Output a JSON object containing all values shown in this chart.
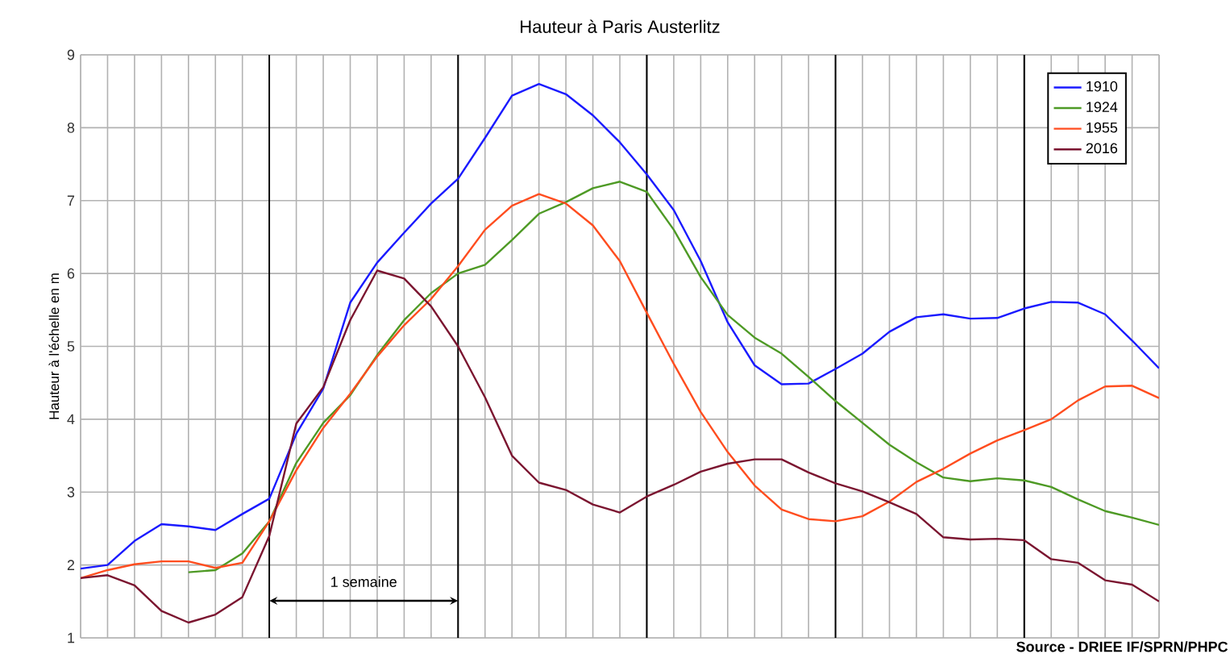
{
  "chart_data": {
    "type": "line",
    "title": "Hauteur à Paris Austerlitz",
    "ylabel": "Hauteur à l'échelle en m",
    "categories": [
      null,
      null,
      null,
      null,
      null,
      null,
      null,
      null,
      null,
      null,
      null,
      null,
      null,
      null,
      null,
      null,
      null,
      null,
      null,
      null,
      null,
      null,
      null,
      null,
      null,
      null,
      null,
      null,
      null,
      null,
      null,
      null,
      null,
      null,
      null,
      null,
      null,
      null,
      null,
      null,
      null
    ],
    "ylim": [
      1,
      9
    ],
    "yticks": [
      1,
      2,
      3,
      4,
      5,
      6,
      7,
      8,
      9
    ],
    "tick_labels": "y",
    "grid": true,
    "legend": "top right",
    "annotations": [
      "1 semaine",
      "Source - DRIEE IF/SPRN/PHPC"
    ],
    "series": [
      {
        "name": "1910",
        "color": "#1a1aff",
        "values": [
          1.95,
          2.0,
          2.33,
          2.56,
          2.53,
          2.48,
          2.7,
          2.91,
          3.8,
          4.42,
          5.6,
          6.15,
          6.56,
          6.96,
          7.3,
          7.86,
          8.44,
          8.6,
          8.46,
          8.17,
          7.8,
          7.36,
          6.87,
          6.17,
          5.33,
          4.74,
          4.48,
          4.49,
          4.69,
          4.9,
          5.2,
          5.4,
          5.44,
          5.38,
          5.39,
          5.52,
          5.61,
          5.6,
          5.44,
          5.08,
          4.7
        ]
      },
      {
        "name": "1924",
        "color": "#4e9a25",
        "values": [
          null,
          null,
          null,
          null,
          1.9,
          1.93,
          2.16,
          2.6,
          3.4,
          3.95,
          4.33,
          4.88,
          5.36,
          5.73,
          6.0,
          6.12,
          6.46,
          6.82,
          6.98,
          7.17,
          7.26,
          7.12,
          6.6,
          5.95,
          5.43,
          5.12,
          4.9,
          4.58,
          4.25,
          3.95,
          3.65,
          3.41,
          3.2,
          3.15,
          3.19,
          3.16,
          3.07,
          2.9,
          2.74,
          2.65,
          2.55
        ]
      },
      {
        "name": "1955",
        "color": "#ff4d1f",
        "values": [
          1.82,
          1.93,
          2.01,
          2.05,
          2.05,
          1.96,
          2.03,
          2.6,
          3.3,
          3.88,
          4.35,
          4.86,
          5.29,
          5.65,
          6.1,
          6.6,
          6.93,
          7.09,
          6.96,
          6.66,
          6.17,
          5.46,
          4.76,
          4.1,
          3.55,
          3.09,
          2.76,
          2.63,
          2.6,
          2.67,
          2.87,
          3.14,
          3.32,
          3.53,
          3.71,
          3.85,
          4.0,
          4.26,
          4.45,
          4.46,
          4.29
        ]
      },
      {
        "name": "2016",
        "color": "#7b1530",
        "values": [
          1.82,
          1.86,
          1.72,
          1.37,
          1.21,
          1.32,
          1.56,
          2.4,
          3.94,
          4.44,
          5.36,
          6.04,
          5.93,
          5.55,
          5.0,
          4.3,
          3.5,
          3.13,
          3.03,
          2.83,
          2.72,
          2.94,
          3.1,
          3.28,
          3.39,
          3.45,
          3.45,
          3.27,
          3.12,
          3.01,
          2.86,
          2.7,
          2.38,
          2.35,
          2.36,
          2.34,
          2.08,
          2.03,
          1.79,
          1.73,
          1.5
        ]
      }
    ]
  }
}
